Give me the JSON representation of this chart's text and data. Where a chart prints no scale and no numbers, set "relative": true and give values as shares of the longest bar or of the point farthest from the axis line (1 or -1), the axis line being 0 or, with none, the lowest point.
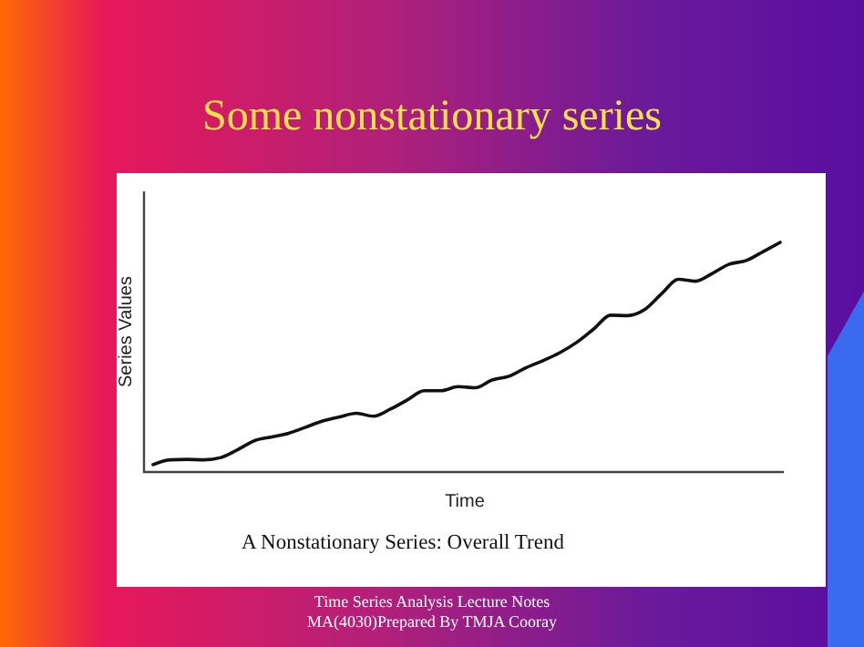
{
  "chart_data": {
    "type": "line",
    "relative": true,
    "title": "Some nonstationary series",
    "xlabel": "Time",
    "ylabel": "Series Values",
    "annotations": [
      "A Nonstationary Series: Overall Trend",
      "Time Series Analysis Lecture Notes",
      "MA(4030)Prepared By TMJA Cooray"
    ],
    "categories": [
      null,
      null,
      null,
      null,
      null,
      null,
      null,
      null,
      null,
      null,
      null,
      null,
      null,
      null,
      null,
      null,
      null,
      null,
      null,
      null,
      null,
      null,
      null,
      null,
      null,
      null,
      null,
      null,
      null,
      null,
      null,
      null,
      null,
      null,
      null,
      null,
      null,
      null
    ],
    "series": [
      {
        "color": "#111111",
        "values": [
          0.032,
          0.053,
          0.055,
          0.053,
          0.063,
          0.098,
          0.137,
          0.153,
          0.169,
          0.195,
          0.222,
          0.24,
          0.256,
          0.243,
          0.274,
          0.314,
          0.354,
          0.354,
          0.372,
          0.367,
          0.401,
          0.417,
          0.454,
          0.485,
          0.52,
          0.565,
          0.623,
          0.683,
          0.681,
          0.707,
          0.776,
          0.839,
          0.831,
          0.865,
          0.905,
          0.921,
          0.96,
          1
        ]
      }
    ],
    "line_style": "solid"
  }
}
